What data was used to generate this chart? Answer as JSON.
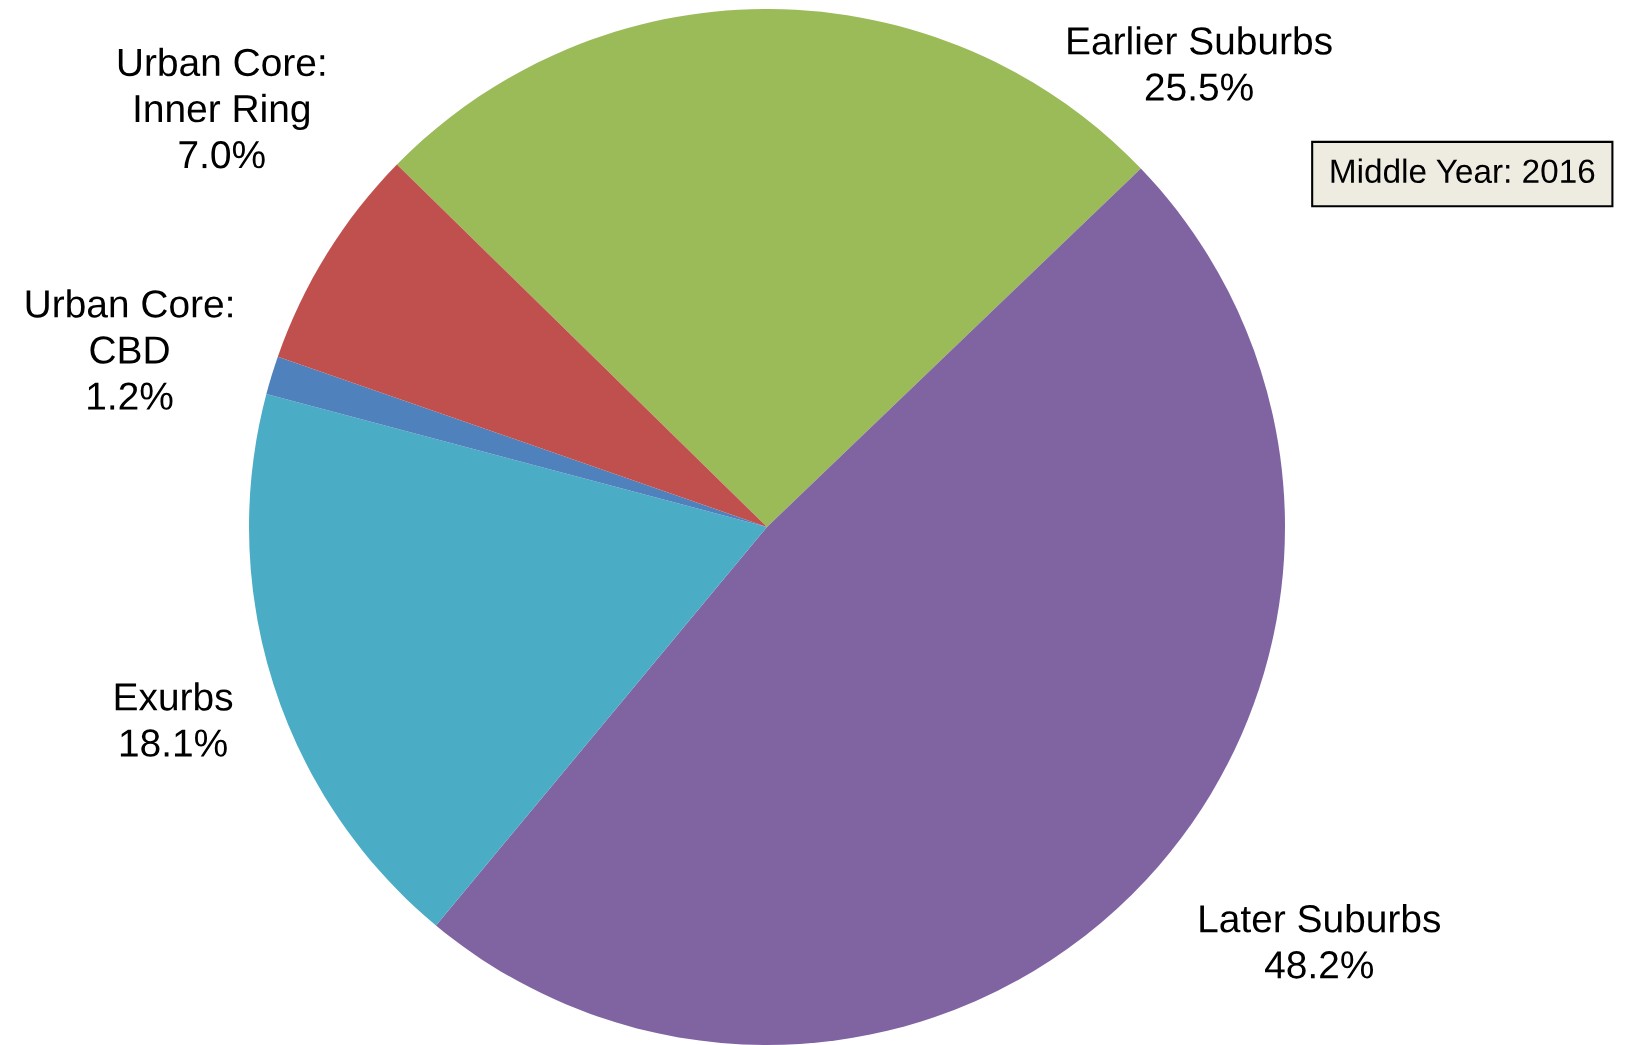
{
  "chart_data": {
    "type": "pie",
    "categories": [
      "Earlier Suburbs",
      "Later Suburbs",
      "Exurbs",
      "Urban Core:\nCBD",
      "Urban Core:\nInner Ring"
    ],
    "values": [
      25.5,
      48.2,
      18.1,
      1.2,
      7.0
    ],
    "value_labels": [
      "25.5%",
      "48.2%",
      "18.1%",
      "1.2%",
      "7.0%"
    ],
    "colors": [
      "#9bbb59",
      "#8064a2",
      "#4bacc6",
      "#4f81bd",
      "#c0504d"
    ],
    "annotations": [
      "Middle Year: 2016"
    ],
    "legend": false
  }
}
